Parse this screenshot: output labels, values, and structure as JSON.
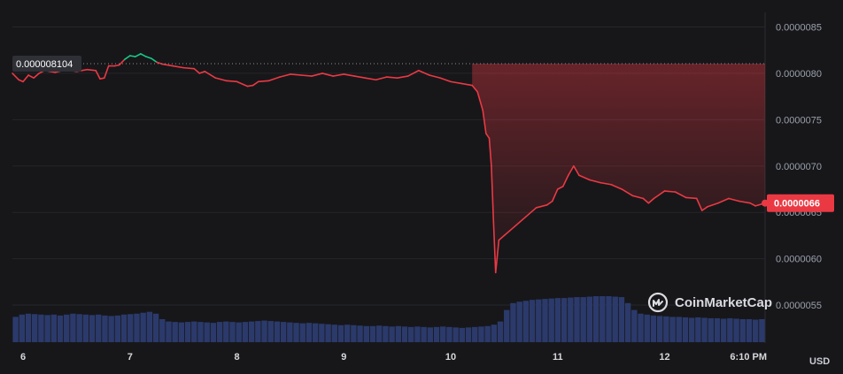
{
  "watermark": {
    "text": "CoinMarketCap",
    "icon": "coinmarketcap-logo-icon"
  },
  "colors": {
    "background": "#17171a",
    "grid": "#26272b",
    "down": "#ea3943",
    "up": "#16c784",
    "volume": "#2b3a6b",
    "ref_line": "#8a8d93",
    "ref_box": "#2e3036",
    "current_badge": "#ea3943"
  },
  "chart_data": {
    "type": "line",
    "title": "",
    "xlabel": "",
    "ylabel": "",
    "unit": "USD",
    "ylim": [
      5.1e-06,
      8.6e-06
    ],
    "yticks": [
      5.5e-06,
      6e-06,
      6.5e-06,
      7e-06,
      7.5e-06,
      8e-06,
      8.5e-06
    ],
    "ytick_labels": [
      "0.0000055",
      "0.0000060",
      "0.0000065",
      "0.0000070",
      "0.0000075",
      "0.0000080",
      "0.0000085"
    ],
    "xlim": [
      5.9,
      12.94
    ],
    "xticks": [
      6,
      7,
      8,
      9,
      10,
      11,
      12,
      12.94
    ],
    "xtick_labels": [
      "6",
      "7",
      "8",
      "9",
      "10",
      "11",
      "12",
      "6:10 PM"
    ],
    "reference": {
      "value": 8.104e-06,
      "label": "0.000008104"
    },
    "current": {
      "value": 6.6e-06,
      "label": "0.0000066"
    },
    "grid": true,
    "series": [
      {
        "points": [
          [
            5.9,
            8e-06
          ],
          [
            5.96,
            7.93e-06
          ],
          [
            6.0,
            7.91e-06
          ],
          [
            6.05,
            7.98e-06
          ],
          [
            6.1,
            7.95e-06
          ],
          [
            6.15,
            8e-06
          ],
          [
            6.2,
            8.03e-06
          ],
          [
            6.3,
            8.01e-06
          ],
          [
            6.4,
            8.04e-06
          ],
          [
            6.5,
            8.02e-06
          ],
          [
            6.6,
            8.04e-06
          ],
          [
            6.68,
            8.03e-06
          ],
          [
            6.72,
            7.94e-06
          ],
          [
            6.76,
            7.95e-06
          ],
          [
            6.8,
            8.08e-06
          ],
          [
            6.86,
            8.08e-06
          ],
          [
            6.9,
            8.09e-06
          ],
          [
            6.95,
            8.15e-06
          ],
          [
            7.0,
            8.19e-06
          ],
          [
            7.05,
            8.18e-06
          ],
          [
            7.1,
            8.21e-06
          ],
          [
            7.15,
            8.18e-06
          ],
          [
            7.2,
            8.16e-06
          ],
          [
            7.25,
            8.12e-06
          ],
          [
            7.3,
            8.1e-06
          ],
          [
            7.4,
            8.08e-06
          ],
          [
            7.5,
            8.06e-06
          ],
          [
            7.6,
            8.05e-06
          ],
          [
            7.65,
            8e-06
          ],
          [
            7.7,
            8.02e-06
          ],
          [
            7.8,
            7.95e-06
          ],
          [
            7.9,
            7.92e-06
          ],
          [
            8.0,
            7.91e-06
          ],
          [
            8.1,
            7.86e-06
          ],
          [
            8.15,
            7.87e-06
          ],
          [
            8.2,
            7.91e-06
          ],
          [
            8.3,
            7.92e-06
          ],
          [
            8.4,
            7.96e-06
          ],
          [
            8.5,
            7.99e-06
          ],
          [
            8.6,
            7.98e-06
          ],
          [
            8.7,
            7.97e-06
          ],
          [
            8.8,
            8e-06
          ],
          [
            8.9,
            7.97e-06
          ],
          [
            9.0,
            7.99e-06
          ],
          [
            9.1,
            7.97e-06
          ],
          [
            9.2,
            7.95e-06
          ],
          [
            9.3,
            7.93e-06
          ],
          [
            9.4,
            7.96e-06
          ],
          [
            9.5,
            7.95e-06
          ],
          [
            9.6,
            7.97e-06
          ],
          [
            9.7,
            8.03e-06
          ],
          [
            9.8,
            7.98e-06
          ],
          [
            9.9,
            7.95e-06
          ],
          [
            10.0,
            7.91e-06
          ],
          [
            10.1,
            7.89e-06
          ],
          [
            10.2,
            7.87e-06
          ],
          [
            10.25,
            7.8e-06
          ],
          [
            10.3,
            7.6e-06
          ],
          [
            10.33,
            7.35e-06
          ],
          [
            10.36,
            7.3e-06
          ],
          [
            10.38,
            7e-06
          ],
          [
            10.4,
            6.4e-06
          ],
          [
            10.42,
            5.85e-06
          ],
          [
            10.45,
            6.2e-06
          ],
          [
            10.5,
            6.25e-06
          ],
          [
            10.55,
            6.3e-06
          ],
          [
            10.6,
            6.35e-06
          ],
          [
            10.7,
            6.45e-06
          ],
          [
            10.8,
            6.55e-06
          ],
          [
            10.9,
            6.58e-06
          ],
          [
            10.95,
            6.62e-06
          ],
          [
            11.0,
            6.75e-06
          ],
          [
            11.05,
            6.78e-06
          ],
          [
            11.1,
            6.9e-06
          ],
          [
            11.15,
            7e-06
          ],
          [
            11.2,
            6.9e-06
          ],
          [
            11.3,
            6.85e-06
          ],
          [
            11.4,
            6.82e-06
          ],
          [
            11.5,
            6.8e-06
          ],
          [
            11.6,
            6.75e-06
          ],
          [
            11.7,
            6.68e-06
          ],
          [
            11.8,
            6.65e-06
          ],
          [
            11.85,
            6.6e-06
          ],
          [
            11.9,
            6.65e-06
          ],
          [
            12.0,
            6.73e-06
          ],
          [
            12.1,
            6.72e-06
          ],
          [
            12.2,
            6.66e-06
          ],
          [
            12.3,
            6.65e-06
          ],
          [
            12.35,
            6.52e-06
          ],
          [
            12.4,
            6.56e-06
          ],
          [
            12.5,
            6.6e-06
          ],
          [
            12.6,
            6.65e-06
          ],
          [
            12.7,
            6.62e-06
          ],
          [
            12.8,
            6.6e-06
          ],
          [
            12.85,
            6.57e-06
          ],
          [
            12.94,
            6.6e-06
          ]
        ]
      }
    ],
    "volume": {
      "relative_values": [
        0.55,
        0.6,
        0.62,
        0.61,
        0.6,
        0.59,
        0.6,
        0.58,
        0.6,
        0.62,
        0.61,
        0.6,
        0.59,
        0.6,
        0.58,
        0.57,
        0.58,
        0.6,
        0.61,
        0.62,
        0.64,
        0.66,
        0.62,
        0.5,
        0.45,
        0.44,
        0.43,
        0.44,
        0.45,
        0.44,
        0.43,
        0.42,
        0.44,
        0.45,
        0.44,
        0.43,
        0.44,
        0.45,
        0.46,
        0.47,
        0.46,
        0.45,
        0.44,
        0.43,
        0.42,
        0.41,
        0.42,
        0.41,
        0.4,
        0.39,
        0.38,
        0.37,
        0.38,
        0.37,
        0.36,
        0.35,
        0.35,
        0.36,
        0.35,
        0.34,
        0.35,
        0.34,
        0.33,
        0.34,
        0.33,
        0.32,
        0.33,
        0.34,
        0.33,
        0.32,
        0.31,
        0.32,
        0.33,
        0.34,
        0.35,
        0.38,
        0.45,
        0.7,
        0.85,
        0.88,
        0.9,
        0.92,
        0.93,
        0.94,
        0.95,
        0.96,
        0.96,
        0.97,
        0.98,
        0.98,
        0.99,
        1.0,
        1.0,
        1.0,
        0.99,
        0.98,
        0.85,
        0.7,
        0.62,
        0.6,
        0.58,
        0.57,
        0.56,
        0.55,
        0.55,
        0.54,
        0.53,
        0.54,
        0.53,
        0.52,
        0.52,
        0.51,
        0.52,
        0.51,
        0.5,
        0.5,
        0.49,
        0.5
      ]
    }
  }
}
